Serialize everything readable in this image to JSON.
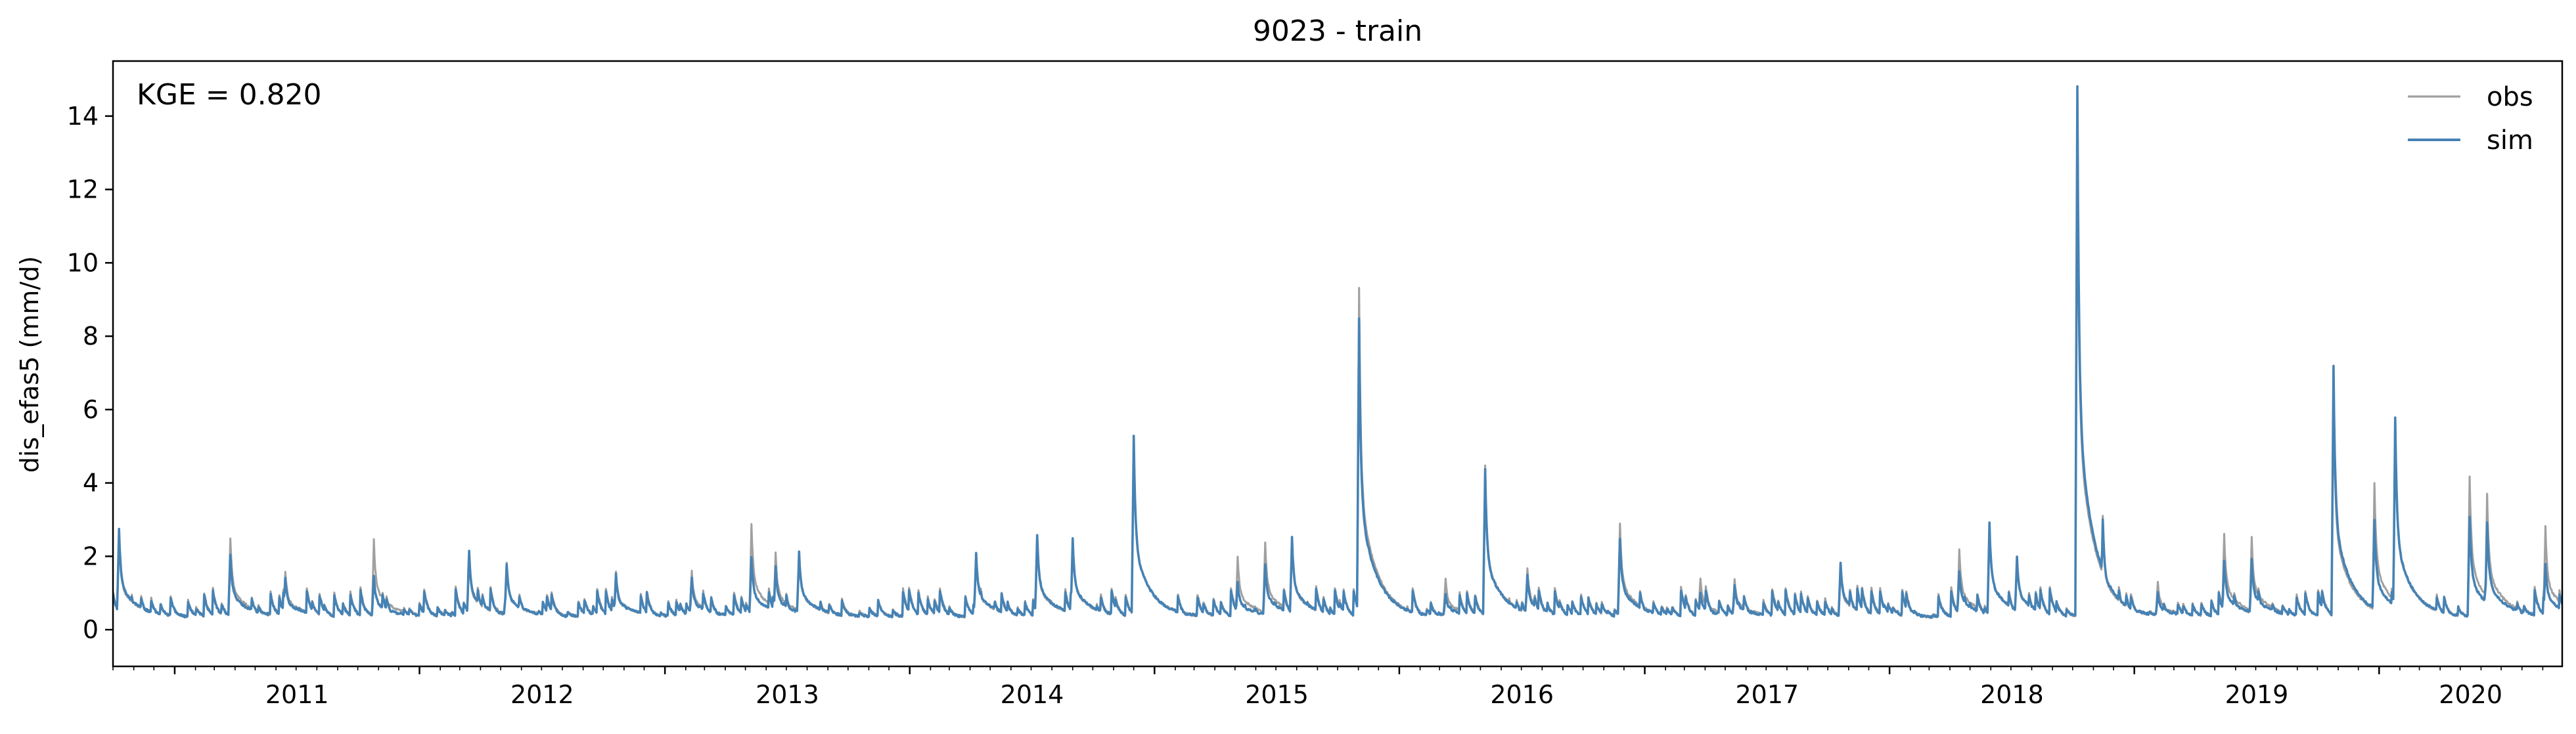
{
  "chart_data": {
    "type": "line",
    "title": "9023 - train",
    "ylabel": "dis_efas5 (mm/d)",
    "xlabel": "",
    "annotation": "KGE = 0.820",
    "legend_position": "top-right",
    "grid": false,
    "ylim": [
      -1,
      15.5
    ],
    "xlim": [
      "2010-10-01",
      "2020-09-30"
    ],
    "yticks": [
      0,
      2,
      4,
      6,
      8,
      10,
      12,
      14
    ],
    "xticks": [
      {
        "label": "2011",
        "date": "2011-01-01"
      },
      {
        "label": "2012",
        "date": "2012-01-01"
      },
      {
        "label": "2013",
        "date": "2013-01-01"
      },
      {
        "label": "2014",
        "date": "2014-01-01"
      },
      {
        "label": "2015",
        "date": "2015-01-01"
      },
      {
        "label": "2016",
        "date": "2016-01-01"
      },
      {
        "label": "2017",
        "date": "2017-01-01"
      },
      {
        "label": "2018",
        "date": "2018-01-01"
      },
      {
        "label": "2019",
        "date": "2019-01-01"
      },
      {
        "label": "2020",
        "date": "2020-01-01"
      }
    ],
    "baseflow": 0.35,
    "series": [
      {
        "name": "obs",
        "color": "#a0a0a0",
        "peaks": [
          [
            "2010-10-10",
            2.6
          ],
          [
            "2011-03-25",
            2.5
          ],
          [
            "2011-06-15",
            1.6
          ],
          [
            "2011-10-25",
            2.45
          ],
          [
            "2012-03-15",
            2.0
          ],
          [
            "2012-05-10",
            1.8
          ],
          [
            "2012-10-20",
            1.6
          ],
          [
            "2013-02-10",
            1.6
          ],
          [
            "2013-05-10",
            2.9
          ],
          [
            "2013-06-15",
            2.1
          ],
          [
            "2013-07-20",
            2.1
          ],
          [
            "2014-04-10",
            2.0
          ],
          [
            "2014-07-10",
            2.5
          ],
          [
            "2014-09-01",
            2.4
          ],
          [
            "2014-12-01",
            5.3
          ],
          [
            "2015-05-05",
            2.0
          ],
          [
            "2015-06-15",
            2.4
          ],
          [
            "2015-07-25",
            2.4
          ],
          [
            "2015-11-02",
            9.3
          ],
          [
            "2016-03-10",
            1.4
          ],
          [
            "2016-05-08",
            4.5
          ],
          [
            "2016-07-10",
            1.7
          ],
          [
            "2016-11-25",
            2.9
          ],
          [
            "2017-03-25",
            1.4
          ],
          [
            "2017-05-15",
            1.4
          ],
          [
            "2017-10-20",
            1.7
          ],
          [
            "2018-04-15",
            2.2
          ],
          [
            "2018-05-30",
            2.9
          ],
          [
            "2018-07-10",
            2.0
          ],
          [
            "2018-10-08",
            13.8
          ],
          [
            "2018-11-15",
            3.1
          ],
          [
            "2019-02-05",
            1.3
          ],
          [
            "2019-05-15",
            2.6
          ],
          [
            "2019-06-25",
            2.5
          ],
          [
            "2019-10-25",
            6.6
          ],
          [
            "2019-12-25",
            4.0
          ],
          [
            "2020-01-25",
            5.7
          ],
          [
            "2020-05-15",
            4.2
          ],
          [
            "2020-06-10",
            3.7
          ],
          [
            "2020-09-05",
            2.8
          ]
        ]
      },
      {
        "name": "sim",
        "color": "#4682b4",
        "peaks": [
          [
            "2010-10-10",
            2.75
          ],
          [
            "2011-03-25",
            2.05
          ],
          [
            "2011-06-15",
            1.4
          ],
          [
            "2011-10-25",
            1.45
          ],
          [
            "2012-03-15",
            2.15
          ],
          [
            "2012-05-10",
            1.8
          ],
          [
            "2012-10-20",
            1.5
          ],
          [
            "2013-02-10",
            1.4
          ],
          [
            "2013-05-10",
            2.0
          ],
          [
            "2013-06-15",
            1.7
          ],
          [
            "2013-07-20",
            2.15
          ],
          [
            "2014-04-10",
            2.1
          ],
          [
            "2014-07-10",
            2.6
          ],
          [
            "2014-09-01",
            2.5
          ],
          [
            "2014-12-01",
            5.3
          ],
          [
            "2015-05-05",
            1.3
          ],
          [
            "2015-06-15",
            1.8
          ],
          [
            "2015-07-25",
            2.5
          ],
          [
            "2015-11-02",
            8.5
          ],
          [
            "2016-03-10",
            1.0
          ],
          [
            "2016-05-08",
            4.4
          ],
          [
            "2016-07-10",
            1.5
          ],
          [
            "2016-11-25",
            2.5
          ],
          [
            "2017-03-25",
            1.0
          ],
          [
            "2017-05-15",
            1.2
          ],
          [
            "2017-10-20",
            1.8
          ],
          [
            "2018-04-15",
            1.6
          ],
          [
            "2018-05-30",
            2.9
          ],
          [
            "2018-07-10",
            2.0
          ],
          [
            "2018-10-08",
            14.8
          ],
          [
            "2018-11-15",
            3.0
          ],
          [
            "2019-02-05",
            1.0
          ],
          [
            "2019-05-15",
            1.9
          ],
          [
            "2019-06-25",
            1.9
          ],
          [
            "2019-10-25",
            7.2
          ],
          [
            "2019-12-25",
            3.0
          ],
          [
            "2020-01-25",
            5.8
          ],
          [
            "2020-05-15",
            3.1
          ],
          [
            "2020-06-10",
            2.9
          ],
          [
            "2020-09-05",
            1.8
          ]
        ]
      }
    ]
  }
}
